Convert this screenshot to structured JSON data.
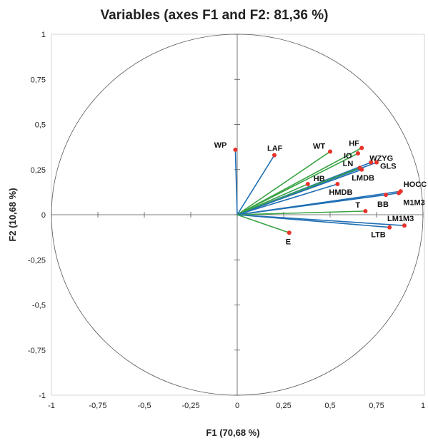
{
  "chart_data": {
    "type": "scatter",
    "title": "Variables (axes F1 and F2: 81,36 %)",
    "xlabel": "F1 (70,68 %)",
    "ylabel": "F2 (10,68 %)",
    "xlim": [
      -1,
      1
    ],
    "ylim": [
      -1,
      1
    ],
    "x_ticks": [
      "-1",
      "-0,75",
      "-0,5",
      "-0,25",
      "0",
      "0,25",
      "0,5",
      "0,75",
      "1"
    ],
    "y_ticks": [
      "1",
      "0,75",
      "0,5",
      "0,25",
      "0",
      "-0,25",
      "-0,5",
      "-0,75",
      "-1"
    ],
    "correlation_circle": true,
    "grid": false,
    "colors": {
      "vector_blue": "#1f6fb5",
      "vector_green": "#3aa345",
      "point": "#e8322a",
      "circle": "#555555",
      "axis": "#555555"
    },
    "points": [
      {
        "label": "WP",
        "x": -0.01,
        "y": 0.36,
        "color": "blue"
      },
      {
        "label": "LAF",
        "x": 0.2,
        "y": 0.33,
        "color": "blue"
      },
      {
        "label": "WT",
        "x": 0.5,
        "y": 0.35,
        "color": "green"
      },
      {
        "label": "HF",
        "x": 0.67,
        "y": 0.37,
        "color": "green"
      },
      {
        "label": "IO",
        "x": 0.65,
        "y": 0.34,
        "color": "green"
      },
      {
        "label": "WZYG",
        "x": 0.72,
        "y": 0.29,
        "color": "blue"
      },
      {
        "label": "GLS",
        "x": 0.75,
        "y": 0.29,
        "color": "blue"
      },
      {
        "label": "LN",
        "x": 0.66,
        "y": 0.26,
        "color": "green"
      },
      {
        "label": "LMDB",
        "x": 0.67,
        "y": 0.25,
        "color": "blue"
      },
      {
        "label": "HB",
        "x": 0.38,
        "y": 0.17,
        "color": "green"
      },
      {
        "label": "HMDB",
        "x": 0.54,
        "y": 0.17,
        "color": "blue"
      },
      {
        "label": "HOCC",
        "x": 0.88,
        "y": 0.13,
        "color": "blue"
      },
      {
        "label": "M1M3",
        "x": 0.87,
        "y": 0.12,
        "color": "blue"
      },
      {
        "label": "BB",
        "x": 0.8,
        "y": 0.11,
        "color": "blue"
      },
      {
        "label": "T",
        "x": 0.69,
        "y": 0.02,
        "color": "green"
      },
      {
        "label": "LM1M3",
        "x": 0.9,
        "y": -0.06,
        "color": "blue"
      },
      {
        "label": "LTB",
        "x": 0.82,
        "y": -0.07,
        "color": "blue"
      },
      {
        "label": "E",
        "x": 0.28,
        "y": -0.1,
        "color": "green"
      }
    ]
  }
}
